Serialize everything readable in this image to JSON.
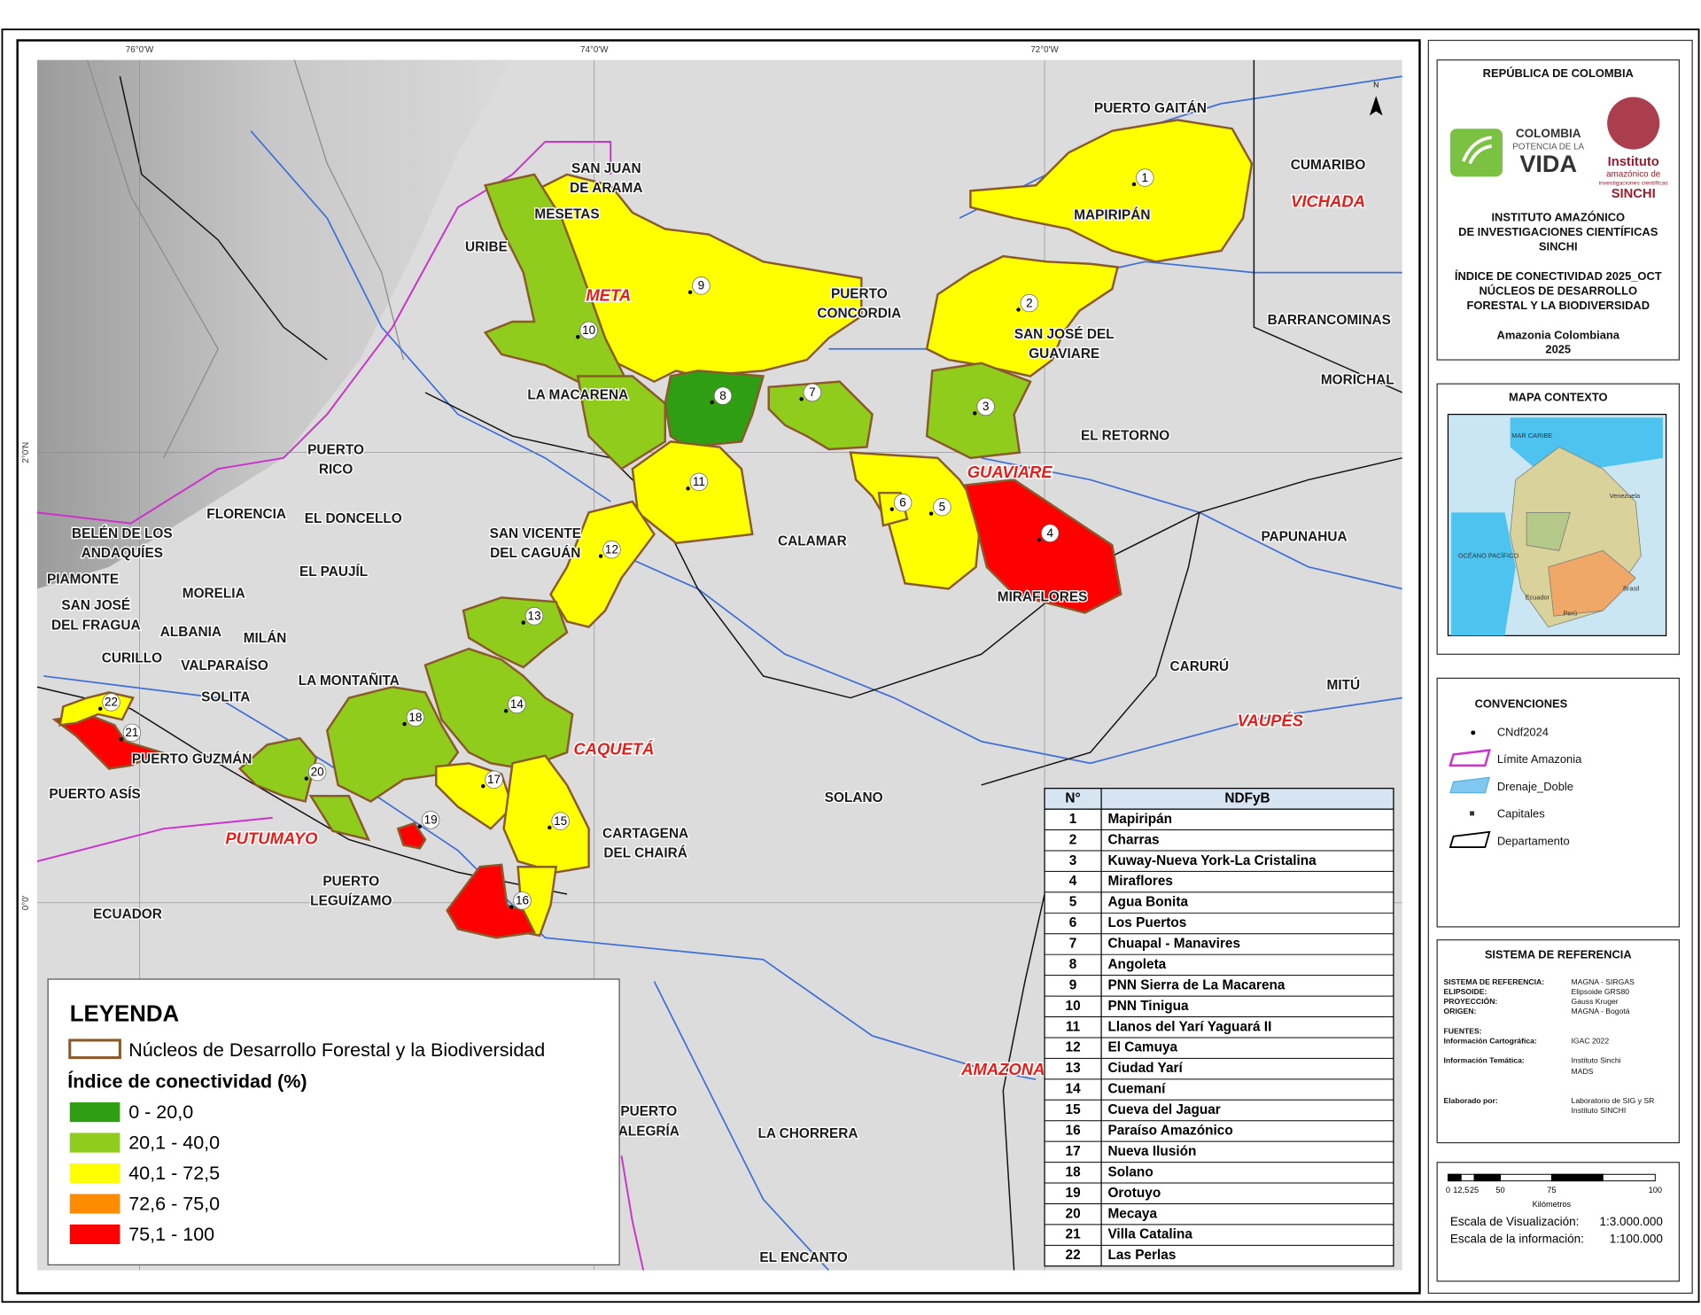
{
  "map": {
    "coordinates": [
      "76°0'W",
      "74°0'W",
      "72°0'W",
      "2°0'N",
      "0°0'"
    ],
    "north": "N",
    "places": [
      "PUERTO GAITÁN",
      "CUMARIBO",
      "MAPIRIPÁN",
      [
        "SAN JUAN",
        "DE ARAMA"
      ],
      "MESETAS",
      "URIBE",
      [
        "PUERTO",
        "CONCORDIA"
      ],
      [
        "SAN JOSÉ DEL",
        "GUAVIARE"
      ],
      "BARRANCOMINAS",
      "MORICHAL",
      "LA MACARENA",
      "EL RETORNO",
      [
        "PUERTO",
        "RICO"
      ],
      "FLORENCIA",
      "EL DONCELLO",
      [
        "BELÉN DE LOS",
        "ANDAQUÍES"
      ],
      [
        "SAN VICENTE",
        "DEL CAGUÁN"
      ],
      "CALAMAR",
      "PAPUNAHUA",
      "EL PAUJÍL",
      "PIAMONTE",
      "MORELIA",
      "MIRAFLORES",
      [
        "SAN JOSÉ",
        "DEL FRAGUA"
      ],
      "ALBANIA",
      "MILÁN",
      "CURILLO",
      "VALPARAÍSO",
      "CARURÚ",
      "SOLITA",
      "LA MONTAÑITA",
      "MITÚ",
      "PUERTO GUZMÁN",
      "PUERTO ASÍS",
      "SOLANO",
      [
        "CARTAGENA",
        "DEL CHAIRÁ"
      ],
      [
        "PUERTO",
        "LEGUÍZAMO"
      ],
      "ECUADOR",
      [
        "PUERTO",
        "ALEGRÍA"
      ],
      "LA CHORRERA",
      "EL ENCANTO"
    ],
    "departments": [
      "VICHADA",
      "META",
      "GUAVIARE",
      "CAQUETÁ",
      "VAUPÉS",
      "PUTUMAYO",
      "AMAZONAS"
    ],
    "nucleus_labels": [
      "1",
      "2",
      "3",
      "4",
      "5",
      "6",
      "7",
      "8",
      "9",
      "10",
      "11",
      "12",
      "13",
      "14",
      "15",
      "16",
      "17",
      "18",
      "19",
      "20",
      "21",
      "22"
    ]
  },
  "legend": {
    "title": "LEYENDA",
    "nucleos": "Núcleos de Desarrollo Forestal y la Biodiversidad",
    "index_title": "Índice de conectividad (%)",
    "classes": [
      {
        "label": "0 - 20,0",
        "color": "#2f9e12"
      },
      {
        "label": "20,1 - 40,0",
        "color": "#8fcc1c"
      },
      {
        "label": "40,1 - 72,5",
        "color": "#ffff00"
      },
      {
        "label": "72,6 - 75,0",
        "color": "#ff8c00"
      },
      {
        "label": "75,1 - 100",
        "color": "#ff0000"
      }
    ]
  },
  "table": {
    "headers": [
      "N°",
      "NDFyB"
    ],
    "rows": [
      [
        "1",
        "Mapiripán"
      ],
      [
        "2",
        "Charras"
      ],
      [
        "3",
        "Kuway-Nueva York-La Cristalina"
      ],
      [
        "4",
        "Miraflores"
      ],
      [
        "5",
        "Agua Bonita"
      ],
      [
        "6",
        "Los Puertos"
      ],
      [
        "7",
        "Chuapal - Manavires"
      ],
      [
        "8",
        "Angoleta"
      ],
      [
        "9",
        "PNN Sierra de La Macarena"
      ],
      [
        "10",
        "PNN Tinigua"
      ],
      [
        "11",
        "Llanos del Yarí Yaguará II"
      ],
      [
        "12",
        "El Camuya"
      ],
      [
        "13",
        "Ciudad Yarí"
      ],
      [
        "14",
        "Cuemaní"
      ],
      [
        "15",
        "Cueva del Jaguar"
      ],
      [
        "16",
        "Paraíso Amazónico"
      ],
      [
        "17",
        "Nueva Ilusión"
      ],
      [
        "18",
        "Solano"
      ],
      [
        "19",
        "Orotuyo"
      ],
      [
        "20",
        "Mecaya"
      ],
      [
        "21",
        "Villa Catalina"
      ],
      [
        "22",
        "Las Perlas"
      ]
    ]
  },
  "panel": {
    "country": "REPÚBLICA DE COLOMBIA",
    "logo_left": [
      "COLOMBIA",
      "POTENCIA DE LA",
      "VIDA"
    ],
    "logo_right": [
      "Instituto",
      "amazónico de",
      "investigaciones científicas",
      "SINCHI"
    ],
    "institute": [
      "INSTITUTO AMAZÓNICO",
      "DE INVESTIGACIONES CIENTÍFICAS",
      "SINCHI"
    ],
    "map_title": [
      "ÍNDICE DE CONECTIVIDAD 2025_OCT",
      "NÚCLEOS DE DESARROLLO",
      "FORESTAL Y LA BIODIVERSIDAD"
    ],
    "region": "Amazonia Colombiana",
    "year": "2025",
    "context_title": "MAPA CONTEXTO",
    "context_labels": [
      "MAR CARIBE",
      "OCÉANO PACÍFICO",
      "Venezuela",
      "Ecuador",
      "Perú",
      "Brasil"
    ],
    "conventions_title": "CONVENCIONES",
    "conventions": [
      "CNdf2024",
      "Límite Amazonia",
      "Drenaje_Doble",
      "Capitales",
      "Departamento"
    ],
    "reference_title": "SISTEMA DE REFERENCIA",
    "reference": [
      [
        "SISTEMA DE REFERENCIA:",
        "MAGNA - SIRGAS"
      ],
      [
        "ELIPSOIDE:",
        "Elipsoide GRS80"
      ],
      [
        "PROYECCIÓN:",
        "Gauss Kruger"
      ],
      [
        "ORIGEN:",
        "MAGNA - Bogotá"
      ],
      [
        "FUENTES:",
        ""
      ],
      [
        "Información Cartográfica:",
        "IGAC 2022"
      ],
      [
        "Información Temática:",
        "Instituto Sinchi"
      ],
      [
        "",
        "MADS"
      ],
      [
        "Elaborado por:",
        "Laboratorio de SIG y SR"
      ],
      [
        "",
        "Instituto SINCHI"
      ]
    ],
    "scale_ticks": [
      "0",
      "12,5",
      "25",
      "50",
      "75",
      "100"
    ],
    "scale_unit": "Kilómetros",
    "scales": [
      [
        "Escala de Visualización:",
        "1:3.000.000"
      ],
      [
        "Escala de la información:",
        "1:100.000"
      ]
    ]
  }
}
